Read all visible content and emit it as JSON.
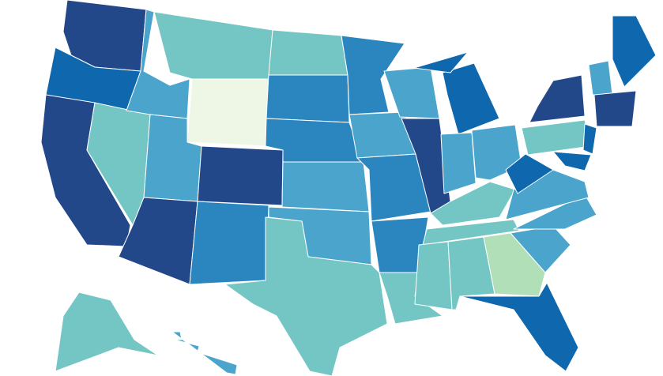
{
  "map": {
    "regions": [
      {
        "color": "#23488a"
      },
      {
        "color": "#0f67ad"
      },
      {
        "color": "#23488a"
      },
      {
        "color": "#74c6c4"
      },
      {
        "color": "#4aa4cb"
      },
      {
        "color": "#74c6c4"
      },
      {
        "color": "#eef7e6"
      },
      {
        "color": "#4aa4cb"
      },
      {
        "color": "#23488a"
      },
      {
        "color": "#23488a"
      },
      {
        "color": "#2b86c0"
      },
      {
        "color": "#74c6c4"
      },
      {
        "color": "#2b86c0"
      },
      {
        "color": "#2b86c0"
      },
      {
        "color": "#4aa4cb"
      },
      {
        "color": "#4aa4cb"
      },
      {
        "color": "#74c6c4"
      },
      {
        "color": "#2b86c0"
      },
      {
        "color": "#4aa4cb"
      },
      {
        "color": "#2b86c0"
      },
      {
        "color": "#2b86c0"
      },
      {
        "color": "#74c6c4"
      },
      {
        "color": "#4aa4cb"
      },
      {
        "color": "#23488a"
      },
      {
        "color": "#0f67ad"
      },
      {
        "color": "#0f67ad"
      },
      {
        "color": "#4aa4cb"
      },
      {
        "color": "#4aa4cb"
      },
      {
        "color": "#74c6c4"
      },
      {
        "color": "#74c6c4"
      },
      {
        "color": "#74c6c4"
      },
      {
        "color": "#74c6c4"
      },
      {
        "color": "#b1dfb8"
      },
      {
        "color": "#0f67ad"
      },
      {
        "color": "#4aa4cb"
      },
      {
        "color": "#4aa4cb"
      },
      {
        "color": "#4aa4cb"
      },
      {
        "color": "#0f67ad"
      },
      {
        "color": "#74c6c4"
      },
      {
        "color": "#23488a"
      },
      {
        "color": "#0f67ad"
      },
      {
        "color": "#0f67ad"
      },
      {
        "color": "#4aa4cb"
      },
      {
        "color": "#0f67ad"
      },
      {
        "color": "#23488a"
      },
      {
        "color": "#74c6c4"
      },
      {
        "color": "#4aa4cb"
      }
    ]
  }
}
